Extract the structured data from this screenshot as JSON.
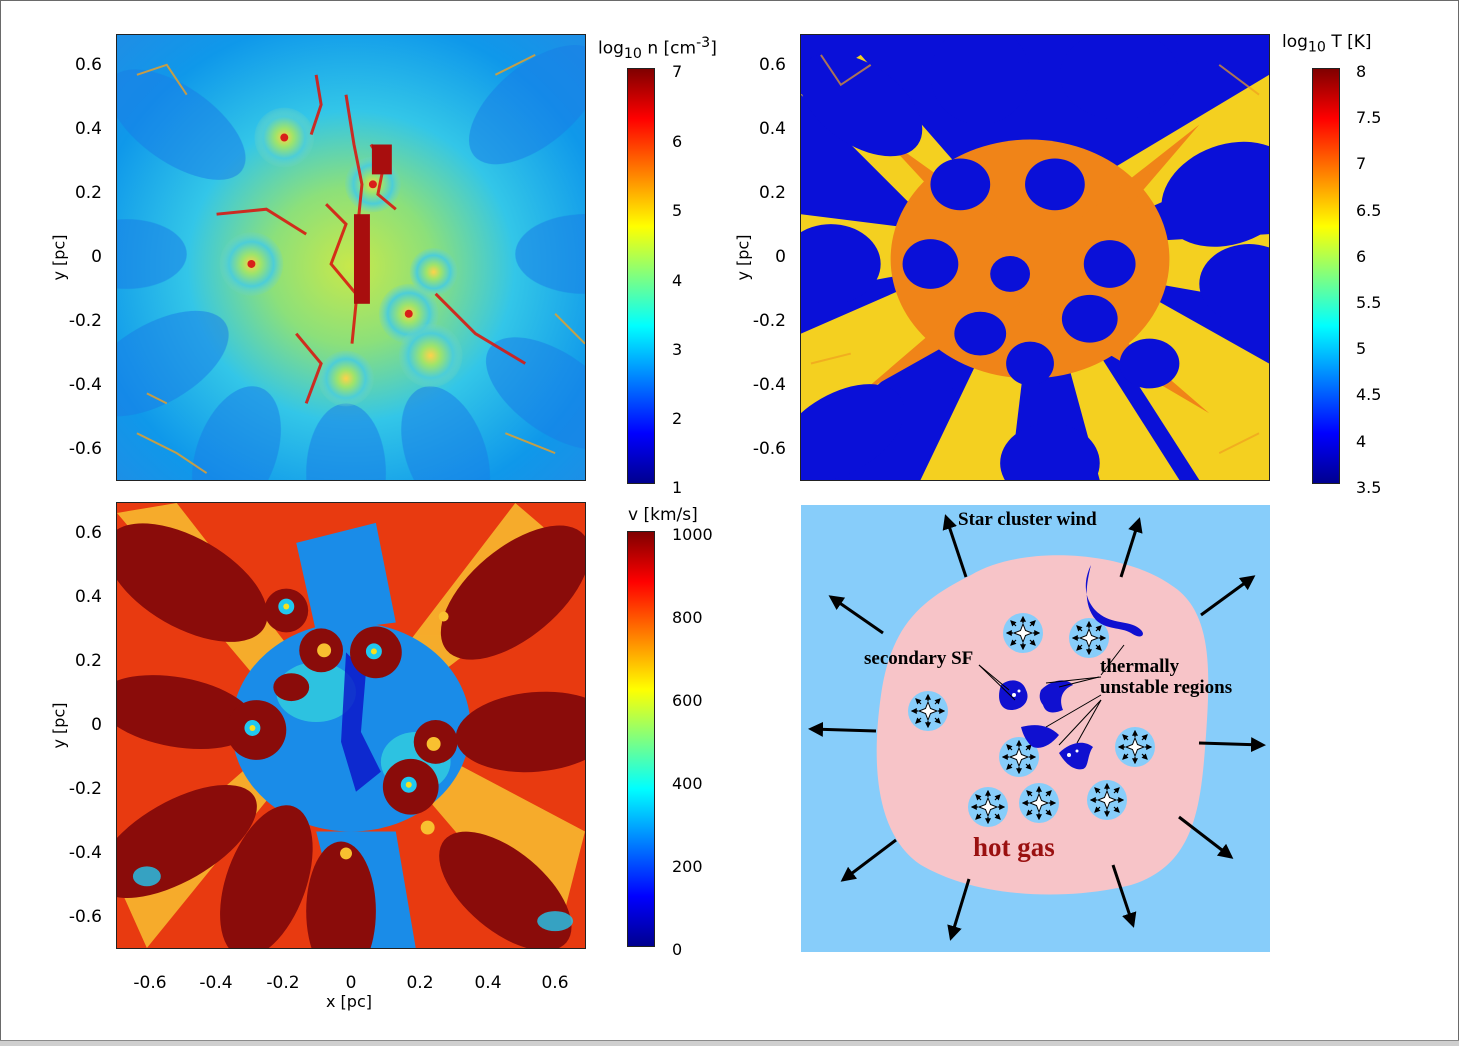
{
  "chart_data": [
    {
      "type": "heatmap",
      "id": "density",
      "colorbar_title_html": "log<sub>10</sub> n [cm<sup>-3</sup>]",
      "colorbar_ticks": [
        "1",
        "2",
        "3",
        "4",
        "5",
        "6",
        "7"
      ],
      "colorbar_range": [
        1,
        7
      ],
      "colormap": "jet",
      "ylabel": "y [pc]",
      "yticks": [
        "0.6",
        "0.4",
        "0.2",
        "0",
        "-0.2",
        "-0.4",
        "-0.6"
      ],
      "xlim": [
        -0.7,
        0.7
      ],
      "ylim": [
        -0.7,
        0.7
      ]
    },
    {
      "type": "heatmap",
      "id": "temperature",
      "colorbar_title_html": "log<sub>10</sub> T [K]",
      "colorbar_ticks": [
        "3.5",
        "4",
        "4.5",
        "5",
        "5.5",
        "6",
        "6.5",
        "7",
        "7.5",
        "8"
      ],
      "colorbar_range": [
        3.5,
        8
      ],
      "colormap": "jet",
      "ylabel": "y [pc]",
      "yticks": [
        "0.6",
        "0.4",
        "0.2",
        "0",
        "-0.2",
        "-0.4",
        "-0.6"
      ],
      "xlim": [
        -0.7,
        0.7
      ],
      "ylim": [
        -0.7,
        0.7
      ]
    },
    {
      "type": "heatmap",
      "id": "velocity",
      "colorbar_title": "v [km/s]",
      "colorbar_ticks": [
        "0",
        "200",
        "400",
        "600",
        "800",
        "1000"
      ],
      "colorbar_range": [
        0,
        1000
      ],
      "colormap": "jet",
      "xlabel": "x [pc]",
      "ylabel": "y [pc]",
      "xticks": [
        "-0.6",
        "-0.4",
        "-0.2",
        "0",
        "0.2",
        "0.4",
        "0.6"
      ],
      "yticks": [
        "0.6",
        "0.4",
        "0.2",
        "0",
        "-0.2",
        "-0.4",
        "-0.6"
      ],
      "xlim": [
        -0.7,
        0.7
      ],
      "ylim": [
        -0.7,
        0.7
      ]
    }
  ],
  "schematic": {
    "title": "Star cluster wind",
    "label_secondary": "secondary SF",
    "label_unstable_1": "thermally",
    "label_unstable_2": "unstable regions",
    "label_hot": "hot gas",
    "colors": {
      "background": "#87cdfa",
      "hot_gas": "#f7c4c8",
      "clumps": "#1010d0",
      "hot_text": "#9a1010"
    }
  }
}
